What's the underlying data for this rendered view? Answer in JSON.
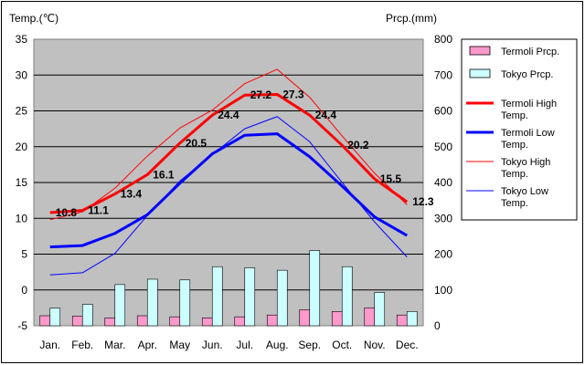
{
  "chart_data": {
    "type": "bar",
    "categories": [
      "Jan.",
      "Feb.",
      "Mar.",
      "Apr.",
      "May",
      "Jun.",
      "Jul.",
      "Aug.",
      "Sep.",
      "Oct.",
      "Nov.",
      "Dec."
    ],
    "left_axis": {
      "label": "Temp.(℃)",
      "ylim": [
        -5,
        35
      ],
      "ticks": [
        -5,
        0,
        5,
        10,
        15,
        20,
        25,
        30,
        35
      ]
    },
    "right_axis": {
      "label": "Prcp.(mm)",
      "ylim": [
        0,
        800
      ],
      "ticks": [
        0,
        100,
        200,
        300,
        400,
        500,
        600,
        700,
        800
      ]
    },
    "grid": true,
    "legend_position": "right",
    "series": [
      {
        "name": "Termoli Prcp.",
        "kind": "bar",
        "axis": "right",
        "color": "#ff99cc",
        "values": [
          28,
          27,
          22,
          28,
          25,
          22,
          25,
          30,
          45,
          40,
          50,
          30
        ]
      },
      {
        "name": "Tokyo Prcp.",
        "kind": "bar",
        "axis": "right",
        "color": "#ccffff",
        "values": [
          49,
          60,
          115,
          130,
          128,
          165,
          162,
          155,
          210,
          165,
          93,
          40
        ]
      },
      {
        "name": "Termoli High Temp.",
        "kind": "line",
        "axis": "left",
        "color": "#ff0000",
        "width": 3,
        "values": [
          10.8,
          11.1,
          13.4,
          16.1,
          20.5,
          24.4,
          27.2,
          27.3,
          24.4,
          20.2,
          15.5,
          12.3
        ],
        "labels": [
          "10.8",
          "11.1",
          "13.4",
          "16.1",
          "20.5",
          "24.4",
          "27.2",
          "27.3",
          "24.4",
          "20.2",
          "15.5",
          "12.3"
        ]
      },
      {
        "name": "Termoli Low Temp.",
        "kind": "line",
        "axis": "left",
        "color": "#0000ff",
        "width": 3,
        "values": [
          6.0,
          6.2,
          7.9,
          10.5,
          14.9,
          19.0,
          21.6,
          21.8,
          18.6,
          14.5,
          10.2,
          7.6
        ]
      },
      {
        "name": "Tokyo High Temp.",
        "kind": "line",
        "axis": "left",
        "color": "#ff0000",
        "width": 1,
        "values": [
          9.8,
          10.9,
          14.2,
          18.7,
          22.6,
          25.1,
          28.8,
          30.8,
          26.9,
          21.5,
          16.3,
          11.9
        ]
      },
      {
        "name": "Tokyo Low Temp.",
        "kind": "line",
        "axis": "left",
        "color": "#0000ff",
        "width": 1,
        "values": [
          2.1,
          2.4,
          5.1,
          10.4,
          15.2,
          18.9,
          22.5,
          24.2,
          20.7,
          15.0,
          9.5,
          4.6
        ]
      }
    ],
    "legend": [
      {
        "label": "Termoli Prcp.",
        "swatch": "bar",
        "color": "#ff99cc"
      },
      {
        "label": "Tokyo Prcp.",
        "swatch": "bar",
        "color": "#ccffff"
      },
      {
        "label": "Termoli High Temp.",
        "swatch": "line-thick",
        "color": "#ff0000"
      },
      {
        "label": "Termoli Low Temp.",
        "swatch": "line-thick",
        "color": "#0000ff"
      },
      {
        "label": "Tokyo High Temp.",
        "swatch": "line-thin",
        "color": "#ff0000"
      },
      {
        "label": "Tokyo Low Temp.",
        "swatch": "line-thin",
        "color": "#0000ff"
      }
    ]
  }
}
